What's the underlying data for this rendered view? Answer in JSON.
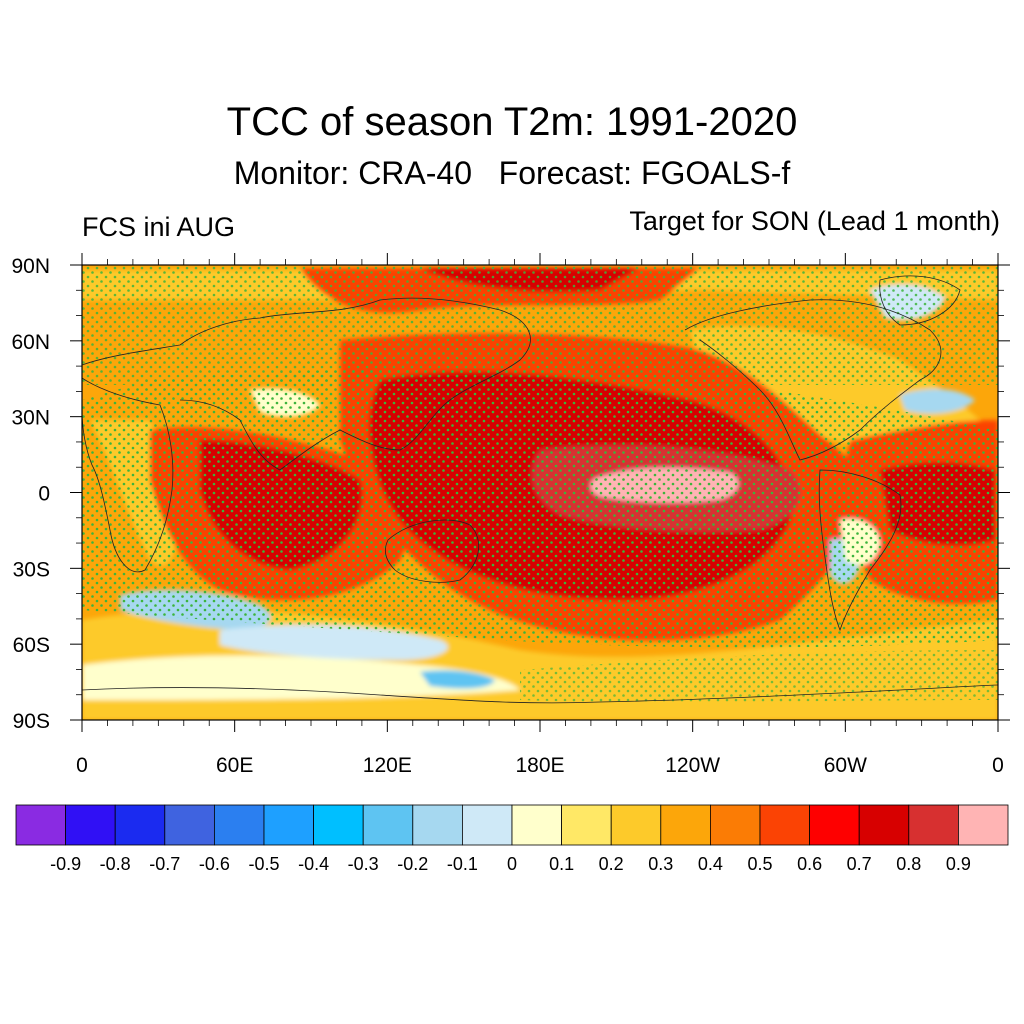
{
  "header": {
    "title": "TCC of season T2m: 1991-2020",
    "subtitle": "Monitor: CRA-40   Forecast: FGOALS-f",
    "left_label": "FCS ini AUG",
    "right_label": "Target for SON (Lead 1 month)"
  },
  "map": {
    "projection": "cylindrical equidistant",
    "lat_range": [
      -90,
      90
    ],
    "lon_range": [
      0,
      360
    ],
    "lat_ticks": [
      {
        "value": 90,
        "label": "90N"
      },
      {
        "value": 60,
        "label": "60N"
      },
      {
        "value": 30,
        "label": "30N"
      },
      {
        "value": 0,
        "label": "0"
      },
      {
        "value": -30,
        "label": "30S"
      },
      {
        "value": -60,
        "label": "60S"
      },
      {
        "value": -90,
        "label": "90S"
      }
    ],
    "lon_ticks": [
      {
        "value": 0,
        "label": "0"
      },
      {
        "value": 60,
        "label": "60E"
      },
      {
        "value": 120,
        "label": "120E"
      },
      {
        "value": 180,
        "label": "180E"
      },
      {
        "value": 240,
        "label": "120W"
      },
      {
        "value": 300,
        "label": "60W"
      },
      {
        "value": 360,
        "label": "0"
      }
    ],
    "stippling_color": "#3cb43c"
  },
  "colorbar": {
    "colors": [
      "#8a2be2",
      "#3010f5",
      "#1b2bf0",
      "#3f63e0",
      "#2b7ff0",
      "#1ea0ff",
      "#00bfff",
      "#5ec4f2",
      "#a6d8f0",
      "#cfe9f7",
      "#ffffcc",
      "#ffe866",
      "#fdca2a",
      "#fca60a",
      "#fb7c05",
      "#fb4304",
      "#fe0000",
      "#d70000",
      "#d73030",
      "#ffb4b4"
    ],
    "labels": [
      "-0.9",
      "-0.8",
      "-0.7",
      "-0.6",
      "-0.5",
      "-0.4",
      "-0.3",
      "-0.2",
      "-0.1",
      "0",
      "0.1",
      "0.2",
      "0.3",
      "0.4",
      "0.5",
      "0.6",
      "0.7",
      "0.8",
      "0.9"
    ]
  }
}
